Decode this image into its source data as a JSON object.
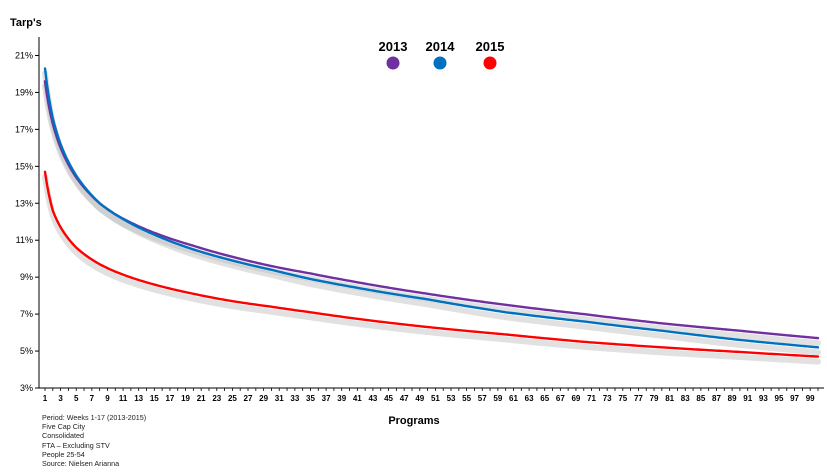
{
  "chart_data": {
    "type": "line",
    "title": "",
    "ylabel": "Tarp's",
    "xlabel": "Programs",
    "x": {
      "min": 1,
      "max": 100,
      "tick_labels": [
        "1",
        "3",
        "5",
        "7",
        "9",
        "11",
        "13",
        "15",
        "17",
        "19",
        "21",
        "23",
        "25",
        "27",
        "29",
        "31",
        "33",
        "35",
        "37",
        "39",
        "41",
        "43",
        "45",
        "47",
        "49",
        "51",
        "53",
        "55",
        "57",
        "59",
        "61",
        "63",
        "65",
        "67",
        "69",
        "71",
        "73",
        "75",
        "77",
        "79",
        "81",
        "83",
        "85",
        "87",
        "89",
        "91",
        "93",
        "95",
        "97",
        "99"
      ]
    },
    "ylim": [
      3,
      22
    ],
    "y_tick_labels": [
      "3%",
      "5%",
      "7%",
      "9%",
      "11%",
      "13%",
      "15%",
      "17%",
      "19%",
      "21%"
    ],
    "y_tick_values": [
      3,
      5,
      7,
      9,
      11,
      13,
      15,
      17,
      19,
      21
    ],
    "grid": false,
    "legend_position": "top-center",
    "series": [
      {
        "name": "2013",
        "color": "#7030a0",
        "points": [
          [
            1,
            19.6
          ],
          [
            2,
            17.3
          ],
          [
            3,
            16.0
          ],
          [
            5,
            14.4
          ],
          [
            8,
            13.0
          ],
          [
            10,
            12.4
          ],
          [
            15,
            11.4
          ],
          [
            20,
            10.7
          ],
          [
            25,
            10.1
          ],
          [
            30,
            9.6
          ],
          [
            35,
            9.2
          ],
          [
            40,
            8.8
          ],
          [
            50,
            8.1
          ],
          [
            60,
            7.5
          ],
          [
            70,
            7.0
          ],
          [
            80,
            6.5
          ],
          [
            90,
            6.1
          ],
          [
            100,
            5.7
          ]
        ]
      },
      {
        "name": "2014",
        "color": "#0070c0",
        "points": [
          [
            1,
            20.3
          ],
          [
            2,
            17.6
          ],
          [
            3,
            16.2
          ],
          [
            5,
            14.5
          ],
          [
            8,
            13.0
          ],
          [
            10,
            12.4
          ],
          [
            15,
            11.3
          ],
          [
            20,
            10.5
          ],
          [
            25,
            9.9
          ],
          [
            30,
            9.4
          ],
          [
            35,
            8.9
          ],
          [
            40,
            8.5
          ],
          [
            50,
            7.8
          ],
          [
            60,
            7.1
          ],
          [
            70,
            6.6
          ],
          [
            80,
            6.1
          ],
          [
            90,
            5.6
          ],
          [
            100,
            5.2
          ]
        ]
      },
      {
        "name": "2015",
        "color": "#ff0000",
        "points": [
          [
            1,
            14.7
          ],
          [
            2,
            12.6
          ],
          [
            3,
            11.7
          ],
          [
            5,
            10.6
          ],
          [
            8,
            9.7
          ],
          [
            10,
            9.3
          ],
          [
            15,
            8.6
          ],
          [
            20,
            8.1
          ],
          [
            25,
            7.7
          ],
          [
            30,
            7.4
          ],
          [
            35,
            7.1
          ],
          [
            40,
            6.8
          ],
          [
            50,
            6.3
          ],
          [
            60,
            5.9
          ],
          [
            70,
            5.5
          ],
          [
            80,
            5.2
          ],
          [
            90,
            4.95
          ],
          [
            100,
            4.7
          ]
        ]
      }
    ]
  },
  "notes": {
    "period": "Period: Weeks 1-17 (2013-2015)",
    "market": "Five Cap City",
    "type": "Consolidated",
    "channels": "FTA – Excluding STV",
    "demo": "People 25-54",
    "source": "Source: Nielsen Arianna"
  }
}
